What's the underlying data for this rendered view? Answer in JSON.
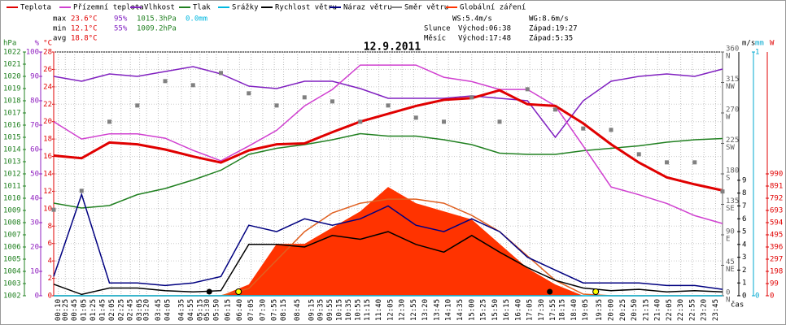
{
  "chart_data": {
    "type": "weather",
    "title": "12.9.2011",
    "x_label": "čas",
    "xlim": [
      0,
      1440
    ],
    "x": [
      0,
      60,
      120,
      180,
      240,
      300,
      360,
      420,
      480,
      540,
      600,
      660,
      720,
      780,
      840,
      900,
      960,
      1020,
      1080,
      1140,
      1200,
      1260,
      1320,
      1380,
      1440
    ],
    "xticks": [
      {
        "value": 10,
        "label": "00:10"
      },
      {
        "value": 25,
        "label": "00:25"
      },
      {
        "value": 45,
        "label": "00:45"
      },
      {
        "value": 65,
        "label": "01:05"
      },
      {
        "value": 85,
        "label": "01:25"
      },
      {
        "value": 105,
        "label": "01:45"
      },
      {
        "value": 125,
        "label": "02:05"
      },
      {
        "value": 145,
        "label": "02:25"
      },
      {
        "value": 165,
        "label": "02:45"
      },
      {
        "value": 185,
        "label": "03:05"
      },
      {
        "value": 200,
        "label": "03:20"
      },
      {
        "value": 225,
        "label": "03:45"
      },
      {
        "value": 245,
        "label": "04:05"
      },
      {
        "value": 275,
        "label": "04:35"
      },
      {
        "value": 295,
        "label": "04:55"
      },
      {
        "value": 315,
        "label": "05:15"
      },
      {
        "value": 330,
        "label": "05:30"
      },
      {
        "value": 350,
        "label": "05:50"
      },
      {
        "value": 375,
        "label": "06:15"
      },
      {
        "value": 400,
        "label": "06:40"
      },
      {
        "value": 425,
        "label": "07:05"
      },
      {
        "value": 450,
        "label": "07:30"
      },
      {
        "value": 475,
        "label": "07:55"
      },
      {
        "value": 495,
        "label": "08:15"
      },
      {
        "value": 525,
        "label": "08:45"
      },
      {
        "value": 555,
        "label": "09:15"
      },
      {
        "value": 575,
        "label": "09:35"
      },
      {
        "value": 595,
        "label": "09:55"
      },
      {
        "value": 615,
        "label": "10:15"
      },
      {
        "value": 635,
        "label": "10:35"
      },
      {
        "value": 655,
        "label": "10:55"
      },
      {
        "value": 675,
        "label": "11:15"
      },
      {
        "value": 700,
        "label": "11:40"
      },
      {
        "value": 725,
        "label": "12:05"
      },
      {
        "value": 750,
        "label": "12:30"
      },
      {
        "value": 775,
        "label": "12:55"
      },
      {
        "value": 800,
        "label": "13:20"
      },
      {
        "value": 825,
        "label": "13:45"
      },
      {
        "value": 850,
        "label": "14:10"
      },
      {
        "value": 875,
        "label": "14:35"
      },
      {
        "value": 900,
        "label": "15:00"
      },
      {
        "value": 925,
        "label": "15:25"
      },
      {
        "value": 950,
        "label": "15:50"
      },
      {
        "value": 975,
        "label": "16:15"
      },
      {
        "value": 1000,
        "label": "16:40"
      },
      {
        "value": 1025,
        "label": "17:05"
      },
      {
        "value": 1050,
        "label": "17:30"
      },
      {
        "value": 1075,
        "label": "17:55"
      },
      {
        "value": 1095,
        "label": "18:15"
      },
      {
        "value": 1120,
        "label": "18:40"
      },
      {
        "value": 1145,
        "label": "19:05"
      },
      {
        "value": 1175,
        "label": "19:35"
      },
      {
        "value": 1200,
        "label": "20:00"
      },
      {
        "value": 1225,
        "label": "20:25"
      },
      {
        "value": 1250,
        "label": "20:50"
      },
      {
        "value": 1275,
        "label": "21:15"
      },
      {
        "value": 1300,
        "label": "21:40"
      },
      {
        "value": 1325,
        "label": "22:05"
      },
      {
        "value": 1350,
        "label": "22:30"
      },
      {
        "value": 1375,
        "label": "22:55"
      },
      {
        "value": 1400,
        "label": "23:20"
      },
      {
        "value": 1425,
        "label": "23:45"
      }
    ],
    "grid": true,
    "axes": {
      "hpa": {
        "label": "hPa",
        "color": "#208020",
        "side": "left",
        "ylim": [
          1002,
          1022
        ],
        "yticks": [
          1002,
          1003,
          1004,
          1005,
          1006,
          1007,
          1008,
          1009,
          1010,
          1011,
          1012,
          1013,
          1014,
          1015,
          1016,
          1017,
          1018,
          1019,
          1020,
          1021,
          1022
        ]
      },
      "pct": {
        "label": "%",
        "color": "#9020c0",
        "side": "left",
        "ylim": [
          0,
          100
        ],
        "yticks": [
          0,
          10,
          20,
          30,
          40,
          50,
          60,
          70,
          80,
          90,
          100
        ]
      },
      "temp": {
        "label": "°C",
        "color": "#e00000",
        "side": "left",
        "ylim": [
          0,
          28
        ],
        "yticks": [
          0,
          2,
          4,
          6,
          8,
          10,
          12,
          14,
          16,
          18,
          20,
          22,
          24,
          26,
          28
        ]
      },
      "dir": {
        "color": "#606060",
        "side": "right",
        "ylim": [
          0,
          360
        ],
        "yticks": [
          0,
          45,
          90,
          135,
          180,
          225,
          270,
          315,
          360
        ],
        "tick_names": [
          "N",
          "NE",
          "E",
          "SE",
          "S",
          "SW",
          "W",
          "NW",
          "N"
        ]
      },
      "ms": {
        "label": "m/s",
        "color": "#000000",
        "side": "right",
        "ylim": [
          0,
          19
        ],
        "yticks": [
          0,
          1,
          2,
          3,
          4,
          5,
          6,
          7,
          8,
          9
        ]
      },
      "mm": {
        "label": "mm",
        "color": "#00a8d0",
        "side": "right",
        "ylim": [
          0,
          1
        ],
        "yticks": [
          0,
          1
        ]
      },
      "w": {
        "label": "W",
        "color": "#e00000",
        "side": "right",
        "ylim": [
          0,
          1980
        ],
        "yticks": [
          0,
          99,
          198,
          297,
          396,
          495,
          594,
          693,
          792,
          891,
          990
        ]
      }
    },
    "series": [
      {
        "name": "Teplota",
        "color": "#e00000",
        "axis": "temp",
        "style": "line",
        "values": [
          16.1,
          15.8,
          17.6,
          17.4,
          16.8,
          16.0,
          15.3,
          16.7,
          17.4,
          17.5,
          18.8,
          20.0,
          20.9,
          21.8,
          22.5,
          22.7,
          23.6,
          22.0,
          21.8,
          19.8,
          17.4,
          15.3,
          13.6,
          12.8,
          12.1
        ]
      },
      {
        "name": "Přízemní teplota",
        "color": "#d040d0",
        "axis": "temp",
        "style": "line",
        "values": [
          20.0,
          18.0,
          18.6,
          18.6,
          18.1,
          16.7,
          15.5,
          17.2,
          19.0,
          21.8,
          23.7,
          26.5,
          26.5,
          26.5,
          25.1,
          24.6,
          23.7,
          23.7,
          21.8,
          17.2,
          12.5,
          11.6,
          10.6,
          9.2,
          8.3
        ]
      },
      {
        "name": "Vlhkost",
        "color": "#8020c0",
        "axis": "pct",
        "style": "line",
        "values": [
          90,
          88,
          91,
          90,
          92,
          94,
          91,
          86,
          85,
          88,
          88,
          85,
          81,
          81,
          81,
          82,
          81,
          80,
          65,
          80,
          88,
          90,
          91,
          90,
          93
        ]
      },
      {
        "name": "Tlak",
        "color": "#208020",
        "axis": "hpa",
        "style": "line",
        "values": [
          1009.6,
          1009.2,
          1009.4,
          1010.3,
          1010.8,
          1011.5,
          1012.3,
          1013.6,
          1014.1,
          1014.4,
          1014.8,
          1015.3,
          1015.1,
          1015.1,
          1014.8,
          1014.4,
          1013.7,
          1013.6,
          1013.6,
          1013.9,
          1014.1,
          1014.3,
          1014.6,
          1014.8,
          1014.9
        ]
      },
      {
        "name": "Srážky",
        "color": "#00b8e0",
        "axis": "mm",
        "style": "line",
        "values": [
          0,
          0,
          0,
          0,
          0,
          0,
          0,
          0,
          0,
          0,
          0,
          0,
          0,
          0,
          0,
          0,
          0,
          0,
          0,
          0,
          0,
          0,
          0,
          0,
          0
        ]
      },
      {
        "name": "Rychlost větru",
        "color": "#000000",
        "axis": "ms",
        "style": "line",
        "values": [
          0.9,
          0.1,
          0.6,
          0.6,
          0.4,
          0.3,
          0.4,
          4.0,
          4.0,
          3.8,
          4.7,
          4.4,
          5.0,
          4.0,
          3.4,
          4.7,
          3.4,
          2.2,
          1.2,
          0.6,
          0.4,
          0.5,
          0.3,
          0.4,
          0.3
        ]
      },
      {
        "name": "Náraz větru",
        "color": "#000080",
        "axis": "ms",
        "style": "line",
        "values": [
          1.5,
          7.9,
          1.0,
          1.0,
          0.8,
          1.0,
          1.5,
          5.5,
          5.0,
          6.0,
          5.5,
          6.0,
          7.0,
          5.5,
          5.0,
          6.0,
          5.0,
          3.0,
          2.0,
          1.0,
          1.0,
          1.0,
          0.8,
          0.8,
          0.5
        ]
      },
      {
        "name": "Směr větru",
        "color": "#808080",
        "axis": "dir",
        "style": "dots",
        "values": [
          127,
          155,
          257,
          281,
          317,
          311,
          329,
          299,
          281,
          293,
          287,
          257,
          281,
          263,
          257,
          293,
          257,
          305,
          275,
          247,
          245,
          209,
          197,
          197,
          154
        ]
      },
      {
        "name": "Globální záření",
        "color": "#ff3300",
        "axis": "w",
        "style": "area",
        "values": [
          0,
          0,
          0,
          0,
          0,
          0,
          0,
          92,
          422,
          422,
          554,
          686,
          884,
          752,
          686,
          620,
          422,
          224,
          92,
          0,
          0,
          0,
          0,
          0,
          0
        ]
      }
    ],
    "clear_sky": {
      "color": "#e06020",
      "axis": "w",
      "values": [
        0,
        0,
        0,
        0,
        0,
        0,
        0,
        59,
        290,
        521,
        673,
        752,
        785,
        785,
        752,
        653,
        521,
        323,
        125,
        13,
        0,
        0,
        0,
        0,
        0
      ]
    },
    "sun_moon_marks": {
      "axis": "ms",
      "sun_color": "#ffff00",
      "moon_color": "#000000",
      "sun": [
        398,
        1167
      ],
      "moon": [
        335,
        1068
      ]
    },
    "stats": {
      "max": {
        "label": "max",
        "temp": "23.6°C",
        "humidity": "95%",
        "pressure": "1015.3hPa",
        "rain": "0.0mm"
      },
      "min": {
        "label": "min",
        "temp": "12.1°C",
        "humidity": "55%",
        "pressure": "1009.2hPa"
      },
      "avg": {
        "label": "avg",
        "temp": "18.8°C"
      },
      "ws": "WS:5.4m/s",
      "wg": "WG:8.6m/s",
      "sun": {
        "label": "Slunce",
        "rise": "Východ:06:38",
        "set": "Západ:19:27"
      },
      "moon": {
        "label": "Měsíc",
        "rise": "Východ:17:48",
        "set": "Západ:5:35"
      }
    }
  }
}
